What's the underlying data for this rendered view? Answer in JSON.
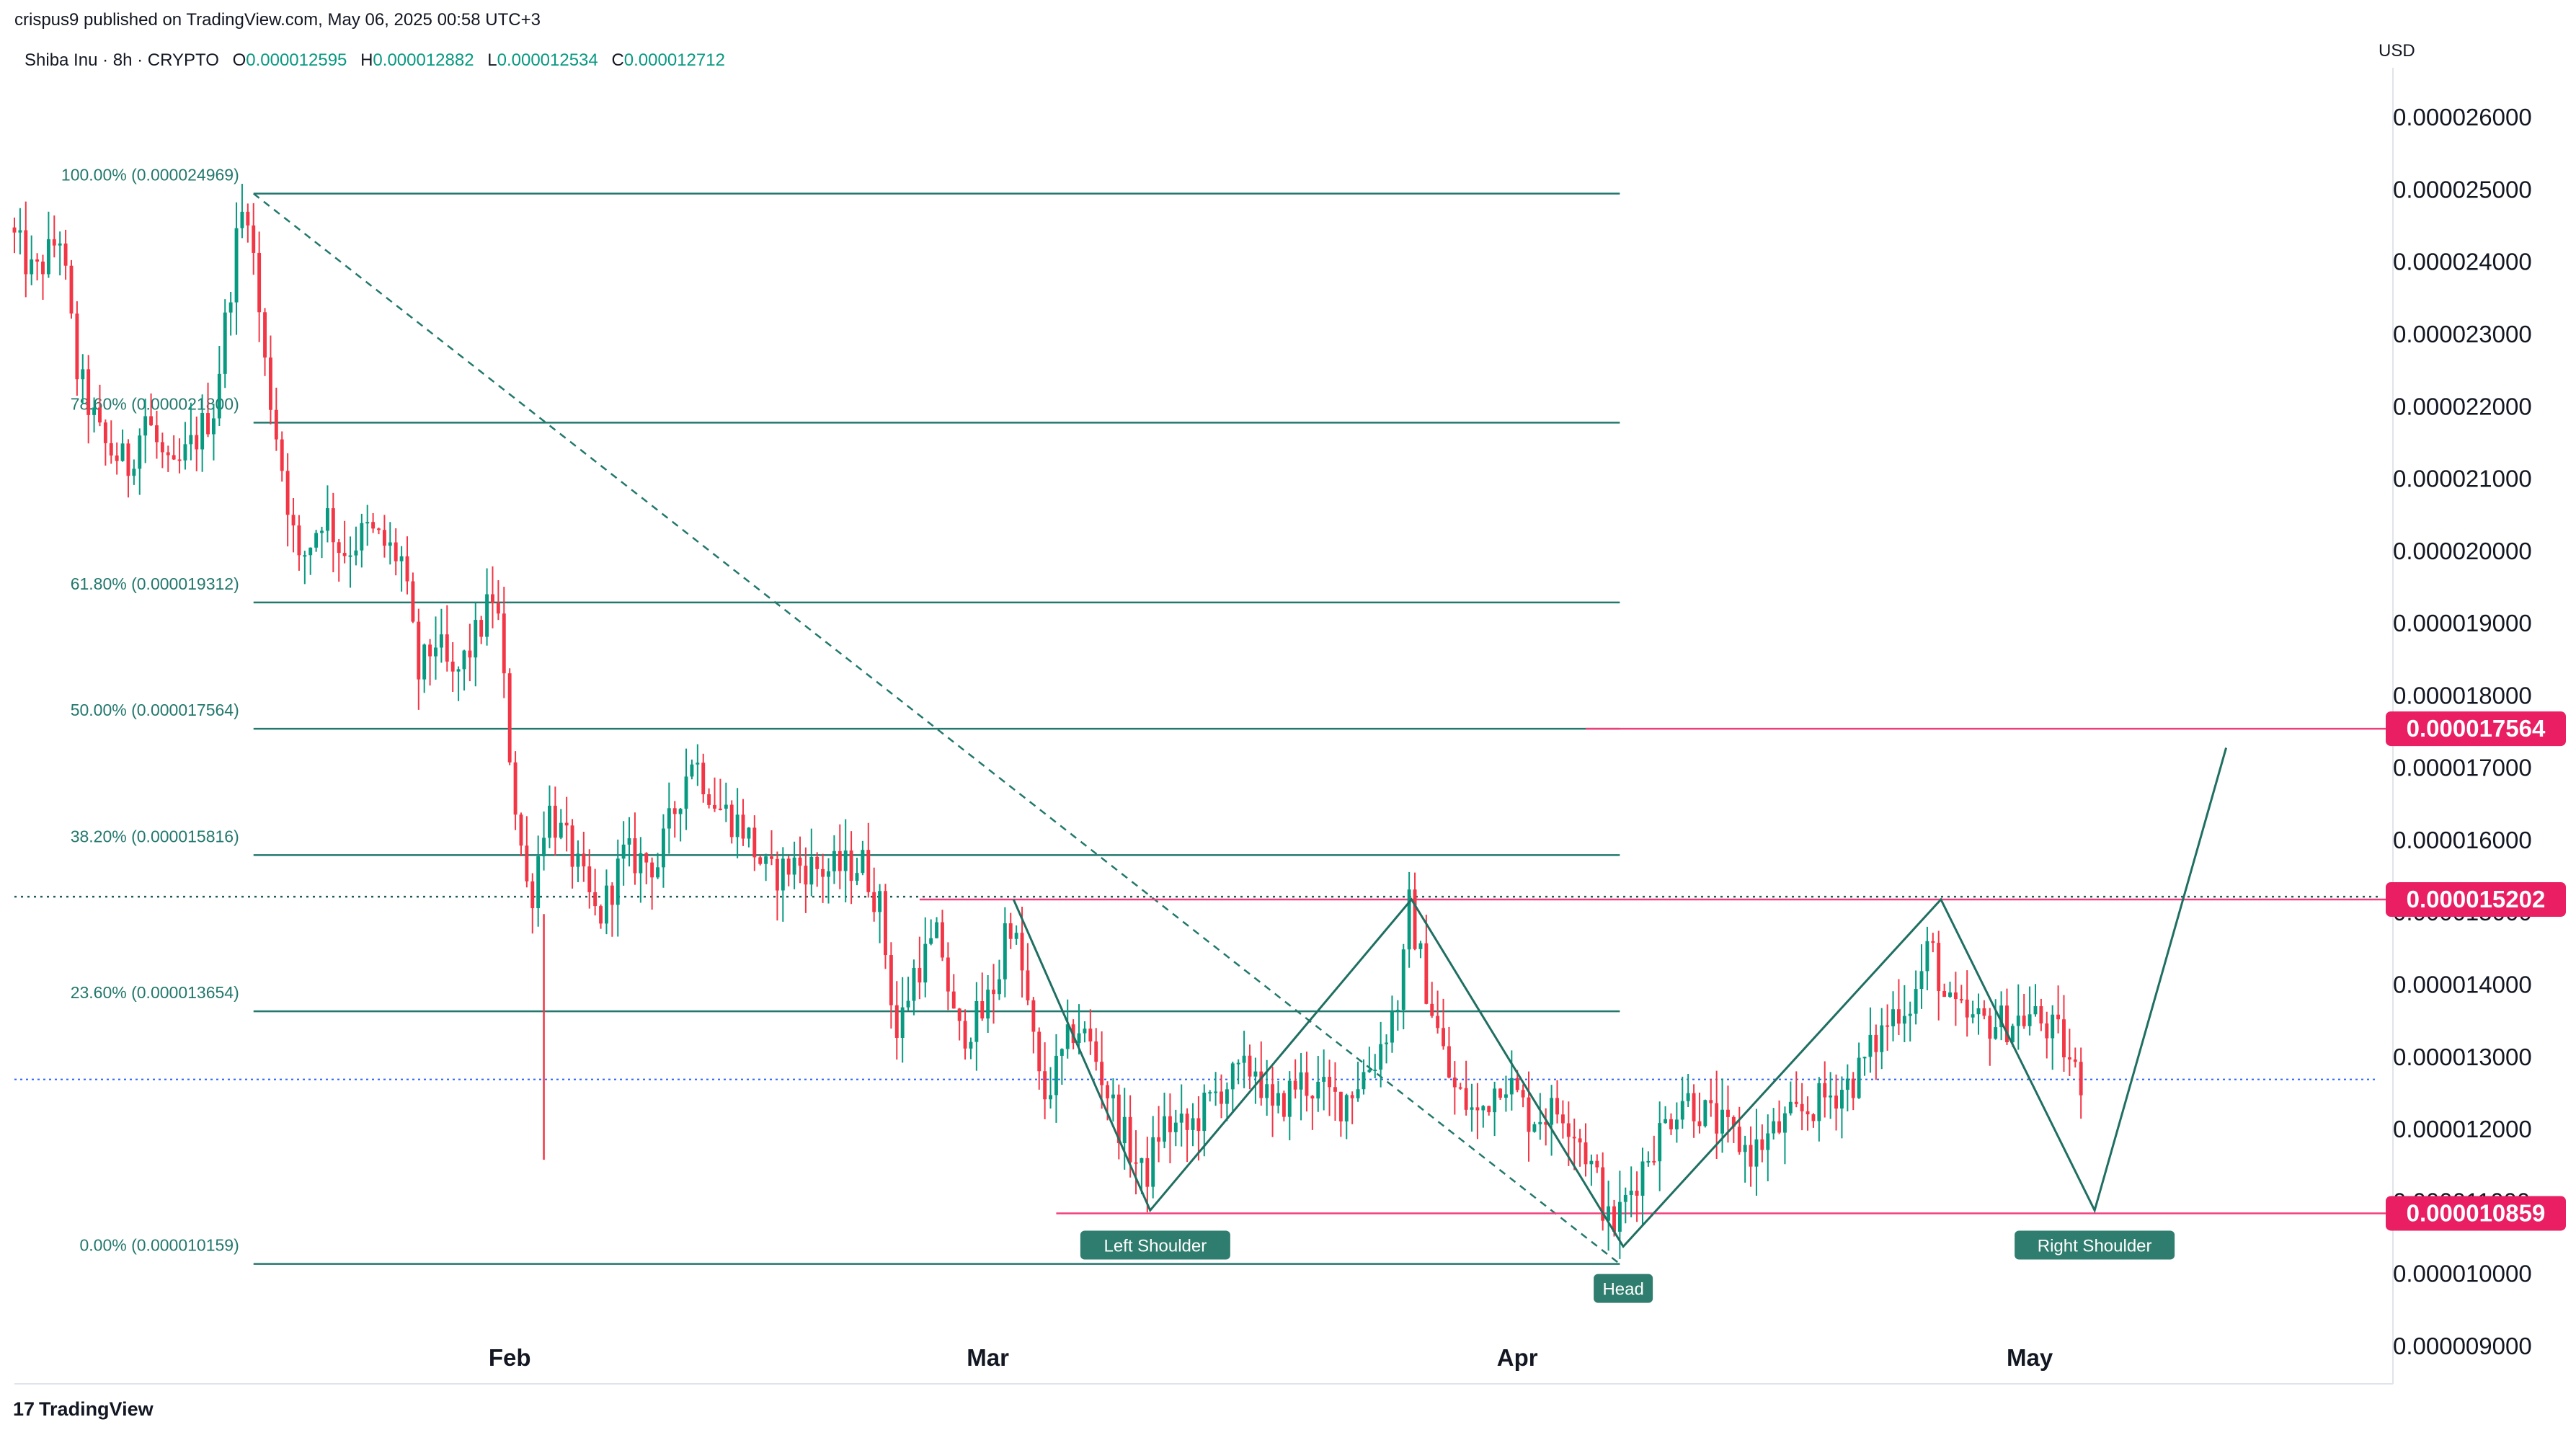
{
  "header": {
    "published": "crispus9 published on TradingView.com, May 06, 2025 00:58 UTC+3",
    "symbol": "Shiba Inu · 8h · CRYPTO",
    "o_label": "O",
    "o_value": "0.000012595",
    "h_label": "H",
    "h_value": "0.000012882",
    "l_label": "L",
    "l_value": "0.000012534",
    "c_label": "C",
    "c_value": "0.000012712"
  },
  "currency": "USD",
  "branding": {
    "logo_text": "TradingView",
    "logo_mark": "17"
  },
  "colors": {
    "up": "#089981",
    "down": "#f23645",
    "fib": "#22786d",
    "pink": "#f23d7c",
    "badge": "#e91e63",
    "label_bg": "#2f7d6e",
    "current": "#2962ff"
  },
  "chart_data": {
    "type": "candlestick",
    "title": "Shiba Inu · 8h · CRYPTO",
    "y_range": [
      8.5e-06,
      2.67e-05
    ],
    "y_ticks": [
      {
        "v": 9e-06,
        "label": "0.000009000"
      },
      {
        "v": 1e-05,
        "label": "0.000010000"
      },
      {
        "v": 1.1e-05,
        "label": "0.000011000"
      },
      {
        "v": 1.2e-05,
        "label": "0.000012000"
      },
      {
        "v": 1.3e-05,
        "label": "0.000013000"
      },
      {
        "v": 1.4e-05,
        "label": "0.000014000"
      },
      {
        "v": 1.5e-05,
        "label": "0.000015000"
      },
      {
        "v": 1.6e-05,
        "label": "0.000016000"
      },
      {
        "v": 1.7e-05,
        "label": "0.000017000"
      },
      {
        "v": 1.8e-05,
        "label": "0.000018000"
      },
      {
        "v": 1.9e-05,
        "label": "0.000019000"
      },
      {
        "v": 2e-05,
        "label": "0.000020000"
      },
      {
        "v": 2.1e-05,
        "label": "0.000021000"
      },
      {
        "v": 2.2e-05,
        "label": "0.000022000"
      },
      {
        "v": 2.3e-05,
        "label": "0.000023000"
      },
      {
        "v": 2.4e-05,
        "label": "0.000024000"
      },
      {
        "v": 2.5e-05,
        "label": "0.000025000"
      },
      {
        "v": 2.6e-05,
        "label": "0.000026000"
      }
    ],
    "x_range_days": [
      0,
      138
    ],
    "x_axis_note": "days since 2025-01-02",
    "x_ticks": [
      {
        "label": "Feb",
        "day": 29
      },
      {
        "label": "Mar",
        "day": 57
      },
      {
        "label": "Apr",
        "day": 88
      },
      {
        "label": "May",
        "day": 118
      }
    ],
    "fib_levels": [
      {
        "pct": "100.00%",
        "label": "100.00% (0.000024969)",
        "v": 2.4969e-05
      },
      {
        "pct": "78.60%",
        "label": "78.60% (0.000021800)",
        "v": 2.18e-05
      },
      {
        "pct": "61.80%",
        "label": "61.80% (0.000019312)",
        "v": 1.9312e-05
      },
      {
        "pct": "50.00%",
        "label": "50.00% (0.000017564)",
        "v": 1.7564e-05
      },
      {
        "pct": "38.20%",
        "label": "38.20% (0.000015816)",
        "v": 1.5816e-05
      },
      {
        "pct": "23.60%",
        "label": "23.60% (0.000013654)",
        "v": 1.3654e-05
      },
      {
        "pct": "0.00%",
        "label": "0.00% (0.000010159)",
        "v": 1.0159e-05
      }
    ],
    "fib_span_days": [
      14,
      94
    ],
    "fib_trend_line": [
      {
        "day": 14,
        "v": 2.4969e-05
      },
      {
        "day": 94,
        "v": 1.0159e-05
      }
    ],
    "levels": [
      {
        "name": "target",
        "v": 1.7564e-05,
        "label": "0.000017564",
        "from_day": 92
      },
      {
        "name": "neckline",
        "v": 1.5202e-05,
        "label": "0.000015202",
        "from_day": 53
      },
      {
        "name": "shoulder-support",
        "v": 1.0859e-05,
        "label": "0.000010859",
        "from_day": 61
      }
    ],
    "previous_close_dotted": 1.524e-05,
    "current_price": 1.2712e-05,
    "pattern_path": [
      {
        "day": 58.5,
        "v": 1.5202e-05
      },
      {
        "day": 66.5,
        "v": 1.09e-05
      },
      {
        "day": 81.8,
        "v": 1.5202e-05
      },
      {
        "day": 94.2,
        "v": 1.04e-05
      },
      {
        "day": 112.8,
        "v": 1.5202e-05
      },
      {
        "day": 121.8,
        "v": 1.09e-05
      },
      {
        "day": 129.5,
        "v": 1.73e-05
      }
    ],
    "pattern_labels": [
      {
        "text": "Left Shoulder",
        "day": 66.8,
        "v": 1.04e-05
      },
      {
        "text": "Head",
        "day": 94.2,
        "v": 9.8e-06
      },
      {
        "text": "Right Shoulder",
        "day": 121.8,
        "v": 1.04e-05
      }
    ],
    "path_keyframes": [
      [
        0,
        2.45e-05
      ],
      [
        1.5,
        2.38e-05
      ],
      [
        3,
        2.44e-05
      ],
      [
        4,
        2.25e-05
      ],
      [
        5.5,
        2.15e-05
      ],
      [
        7,
        2.12e-05
      ],
      [
        8,
        2.19e-05
      ],
      [
        9.5,
        2.1e-05
      ],
      [
        10.5,
        2.14e-05
      ],
      [
        12,
        2.2e-05
      ],
      [
        13.5,
        2.46e-05
      ],
      [
        14,
        2.48e-05
      ],
      [
        15,
        2.26e-05
      ],
      [
        16,
        2.12e-05
      ],
      [
        17,
        1.98e-05
      ],
      [
        18.5,
        2.06e-05
      ],
      [
        19.5,
        2e-05
      ],
      [
        21,
        2.03e-05
      ],
      [
        23,
        1.99e-05
      ],
      [
        24,
        1.83e-05
      ],
      [
        25,
        1.88e-05
      ],
      [
        26,
        1.82e-05
      ],
      [
        27.5,
        1.89e-05
      ],
      [
        28.5,
        1.95e-05
      ],
      [
        29.5,
        1.68e-05
      ],
      [
        30.5,
        1.51e-05
      ],
      [
        31.5,
        1.65e-05
      ],
      [
        33,
        1.58e-05
      ],
      [
        34.5,
        1.49e-05
      ],
      [
        36,
        1.58e-05
      ],
      [
        38,
        1.57e-05
      ],
      [
        40,
        1.72e-05
      ],
      [
        41.5,
        1.65e-05
      ],
      [
        43,
        1.62e-05
      ],
      [
        44.5,
        1.55e-05
      ],
      [
        46,
        1.57e-05
      ],
      [
        48,
        1.56e-05
      ],
      [
        50,
        1.57e-05
      ],
      [
        51,
        1.51e-05
      ],
      [
        52,
        1.33e-05
      ],
      [
        53,
        1.42e-05
      ],
      [
        54.5,
        1.47e-05
      ],
      [
        55.5,
        1.33e-05
      ],
      [
        57,
        1.36e-05
      ],
      [
        58,
        1.42e-05
      ],
      [
        58.5,
        1.51e-05
      ],
      [
        59.5,
        1.4e-05
      ],
      [
        60.5,
        1.24e-05
      ],
      [
        61.5,
        1.29e-05
      ],
      [
        62.5,
        1.35e-05
      ],
      [
        63.5,
        1.31e-05
      ],
      [
        65,
        1.21e-05
      ],
      [
        66.5,
        1.13e-05
      ],
      [
        67.5,
        1.21e-05
      ],
      [
        69,
        1.2e-05
      ],
      [
        71,
        1.26e-05
      ],
      [
        73,
        1.29e-05
      ],
      [
        74,
        1.22e-05
      ],
      [
        75.5,
        1.27e-05
      ],
      [
        78,
        1.24e-05
      ],
      [
        80,
        1.3e-05
      ],
      [
        81.5,
        1.39e-05
      ],
      [
        82,
        1.51e-05
      ],
      [
        83,
        1.4e-05
      ],
      [
        84.5,
        1.26e-05
      ],
      [
        86,
        1.22e-05
      ],
      [
        87.5,
        1.28e-05
      ],
      [
        89,
        1.22e-05
      ],
      [
        91,
        1.23e-05
      ],
      [
        92,
        1.19e-05
      ],
      [
        93,
        1.13e-05
      ],
      [
        93.8,
        1.06e-05
      ],
      [
        94.8,
        1.11e-05
      ],
      [
        96,
        1.17e-05
      ],
      [
        98,
        1.25e-05
      ],
      [
        100,
        1.21e-05
      ],
      [
        102,
        1.17e-05
      ],
      [
        104,
        1.21e-05
      ],
      [
        106,
        1.24e-05
      ],
      [
        108,
        1.27e-05
      ],
      [
        109.5,
        1.33e-05
      ],
      [
        110.5,
        1.37e-05
      ],
      [
        111.5,
        1.38e-05
      ],
      [
        112.5,
        1.46e-05
      ],
      [
        113.5,
        1.37e-05
      ],
      [
        115,
        1.35e-05
      ],
      [
        117,
        1.35e-05
      ],
      [
        118.5,
        1.36e-05
      ],
      [
        120,
        1.33e-05
      ],
      [
        121,
        1.28e-05
      ],
      [
        121.3,
        1.27e-05
      ]
    ]
  }
}
